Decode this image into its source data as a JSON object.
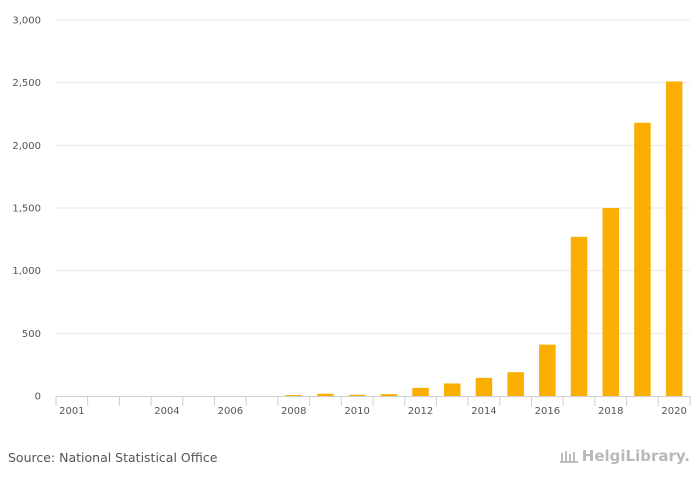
{
  "chart_data": {
    "type": "bar",
    "categories": [
      "2001",
      "2002",
      "2003",
      "2004",
      "2005",
      "2006",
      "2007",
      "2008",
      "2009",
      "2010",
      "2011",
      "2012",
      "2013",
      "2014",
      "2015",
      "2016",
      "2017",
      "2018",
      "2019",
      "2020"
    ],
    "values": [
      0,
      0,
      0,
      0,
      0,
      0,
      0,
      8,
      18,
      10,
      15,
      65,
      100,
      145,
      190,
      410,
      1270,
      1500,
      2180,
      2510
    ],
    "x_tick_labels": [
      "2001",
      "2004",
      "2006",
      "2008",
      "2010",
      "2012",
      "2014",
      "2016",
      "2018",
      "2020"
    ],
    "y_ticks": [
      0,
      500,
      1000,
      1500,
      2000,
      2500,
      3000
    ],
    "y_tick_labels": [
      "0",
      "500",
      "1,000",
      "1,500",
      "2,000",
      "2,500",
      "3,000"
    ],
    "ylim": [
      0,
      3000
    ],
    "grid": true,
    "bar_color": "#f9ae00",
    "title": "",
    "xlabel": "",
    "ylabel": ""
  },
  "footer": {
    "source": "Source: National Statistical Office",
    "logo_text": "HelgiLibrary."
  }
}
